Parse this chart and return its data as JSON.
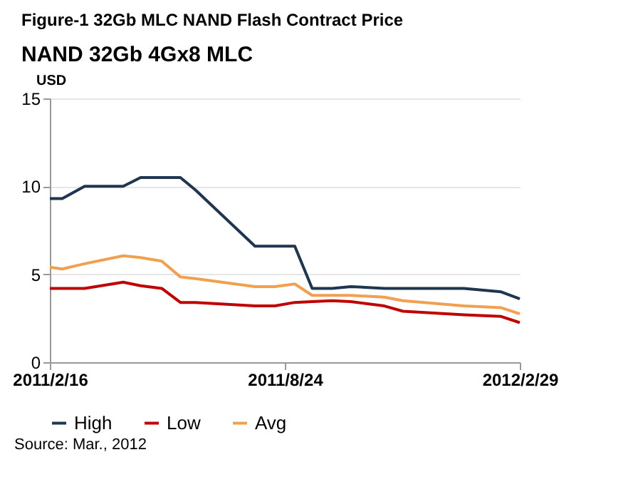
{
  "chart_data": {
    "type": "line",
    "title": "Figure-1 32Gb MLC NAND Flash Contract Price",
    "subtitle": "NAND 32Gb 4Gx8 MLC",
    "ylabel": "USD",
    "x": [
      "2011-02-16",
      "2011-02-26",
      "2011-03-16",
      "2011-04-16",
      "2011-04-30",
      "2011-05-17",
      "2011-06-01",
      "2011-06-13",
      "2011-07-31",
      "2011-08-16",
      "2011-09-01",
      "2011-09-15",
      "2011-10-01",
      "2011-10-16",
      "2011-11-12",
      "2011-11-27",
      "2012-01-15",
      "2012-02-14",
      "2012-02-29"
    ],
    "series": [
      {
        "name": "High",
        "color": "#1f3550",
        "values": [
          9.3,
          9.3,
          10,
          10,
          10.5,
          10.5,
          10.5,
          9.8,
          6.6,
          6.6,
          6.6,
          4.2,
          4.2,
          4.3,
          4.2,
          4.2,
          4.2,
          4.0,
          3.6
        ]
      },
      {
        "name": "Low",
        "color": "#c00000",
        "values": [
          4.2,
          4.2,
          4.2,
          4.55,
          4.35,
          4.2,
          3.4,
          3.4,
          3.2,
          3.2,
          3.4,
          3.45,
          3.5,
          3.45,
          3.2,
          2.9,
          2.7,
          2.6,
          2.25
        ]
      },
      {
        "name": "Avg",
        "color": "#f0a050",
        "values": [
          5.4,
          5.3,
          5.6,
          6.05,
          5.95,
          5.75,
          4.85,
          4.75,
          4.3,
          4.3,
          4.45,
          3.8,
          3.8,
          3.8,
          3.7,
          3.5,
          3.2,
          3.1,
          2.75
        ]
      }
    ],
    "xlim": [
      "2011-02-16",
      "2012-02-29"
    ],
    "xticks": [
      {
        "value": "2011-02-16",
        "label": "2011/2/16"
      },
      {
        "value": "2011-08-24",
        "label": "2011/8/24"
      },
      {
        "value": "2012-02-29",
        "label": "2012/2/29"
      }
    ],
    "ylim": [
      0,
      15
    ],
    "yticks": [
      0,
      5,
      10,
      15
    ],
    "grid": "y",
    "legend": "bottom",
    "marker": "none",
    "line_style": "solid",
    "annotations": [
      "Source: Mar., 2012"
    ]
  }
}
